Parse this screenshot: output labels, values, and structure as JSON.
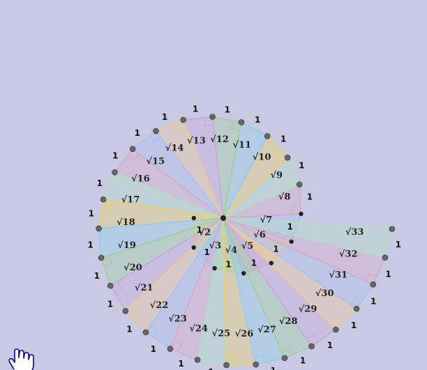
{
  "diagram": {
    "title": "",
    "triangle_count": 32,
    "leg_label": "1",
    "hypotenuse_labels": [
      "√2",
      "√3",
      "√4",
      "√5",
      "√6",
      "√7",
      "√8",
      "√9",
      "√10",
      "√11",
      "√12",
      "√13",
      "√14",
      "√15",
      "√16",
      "√17",
      "√18",
      "√19",
      "√20",
      "√21",
      "√22",
      "√23",
      "√24",
      "√25",
      "√26",
      "√27",
      "√28",
      "√29",
      "√30",
      "√31",
      "√32",
      "√33"
    ],
    "inner_labels": [
      "√2",
      "√3",
      "√4",
      "√5",
      "√6",
      "√7"
    ],
    "colors": [
      "#f0d060",
      "#8cd0e8",
      "#9fd09a",
      "#c8a8d8",
      "#f0c890",
      "#a8c0f0",
      "#d8a8c8",
      "#b0e0c0"
    ],
    "fill_opacity": 0.35,
    "background": "#c9c9e3"
  },
  "corner_icon": "hand-cursor-icon"
}
